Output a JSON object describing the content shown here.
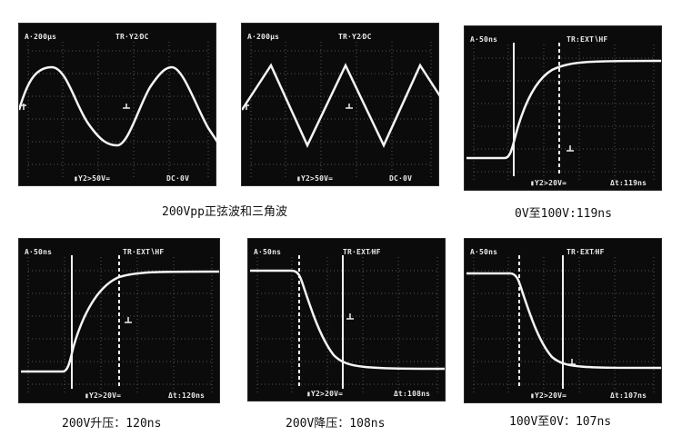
{
  "captions": {
    "row1_left": "200Vpp正弦波和三角波",
    "row1_right": "0V至100V:119ns",
    "row2_left": "200V升压：120ns",
    "row2_mid": "200V降压：108ns",
    "row2_right": "100V至0V：107ns"
  },
  "screens": [
    {
      "timebase": "A·200μs",
      "trigger": "TR·Y2⁄DC",
      "vdiv": "▮Y2>50V=",
      "extra": "DC·0V",
      "waveform": "sine"
    },
    {
      "timebase": "A·200μs",
      "trigger": "TR·Y2⁄DC",
      "vdiv": "▮Y2>50V=",
      "extra": "DC·0V",
      "waveform": "triangle"
    },
    {
      "timebase": "A·50ns",
      "trigger": "TR:EXT∖HF",
      "vdiv": "▮Y2>20V=",
      "extra": "Δt:119ns",
      "waveform": "rise"
    },
    {
      "timebase": "A·50ns",
      "trigger": "TR·EXT∖HF",
      "vdiv": "▮Y2>20V=",
      "extra": "Δt:120ns",
      "waveform": "rise"
    },
    {
      "timebase": "A·50ns",
      "trigger": "TR·EXT⁄HF",
      "vdiv": "▮Y2>20V=",
      "extra": "Δt:108ns",
      "waveform": "fall"
    },
    {
      "timebase": "A·50ns",
      "trigger": "TR·EXT⁄HF",
      "vdiv": "▮Y2>20V=",
      "extra": "Δt:107ns",
      "waveform": "fall"
    }
  ]
}
